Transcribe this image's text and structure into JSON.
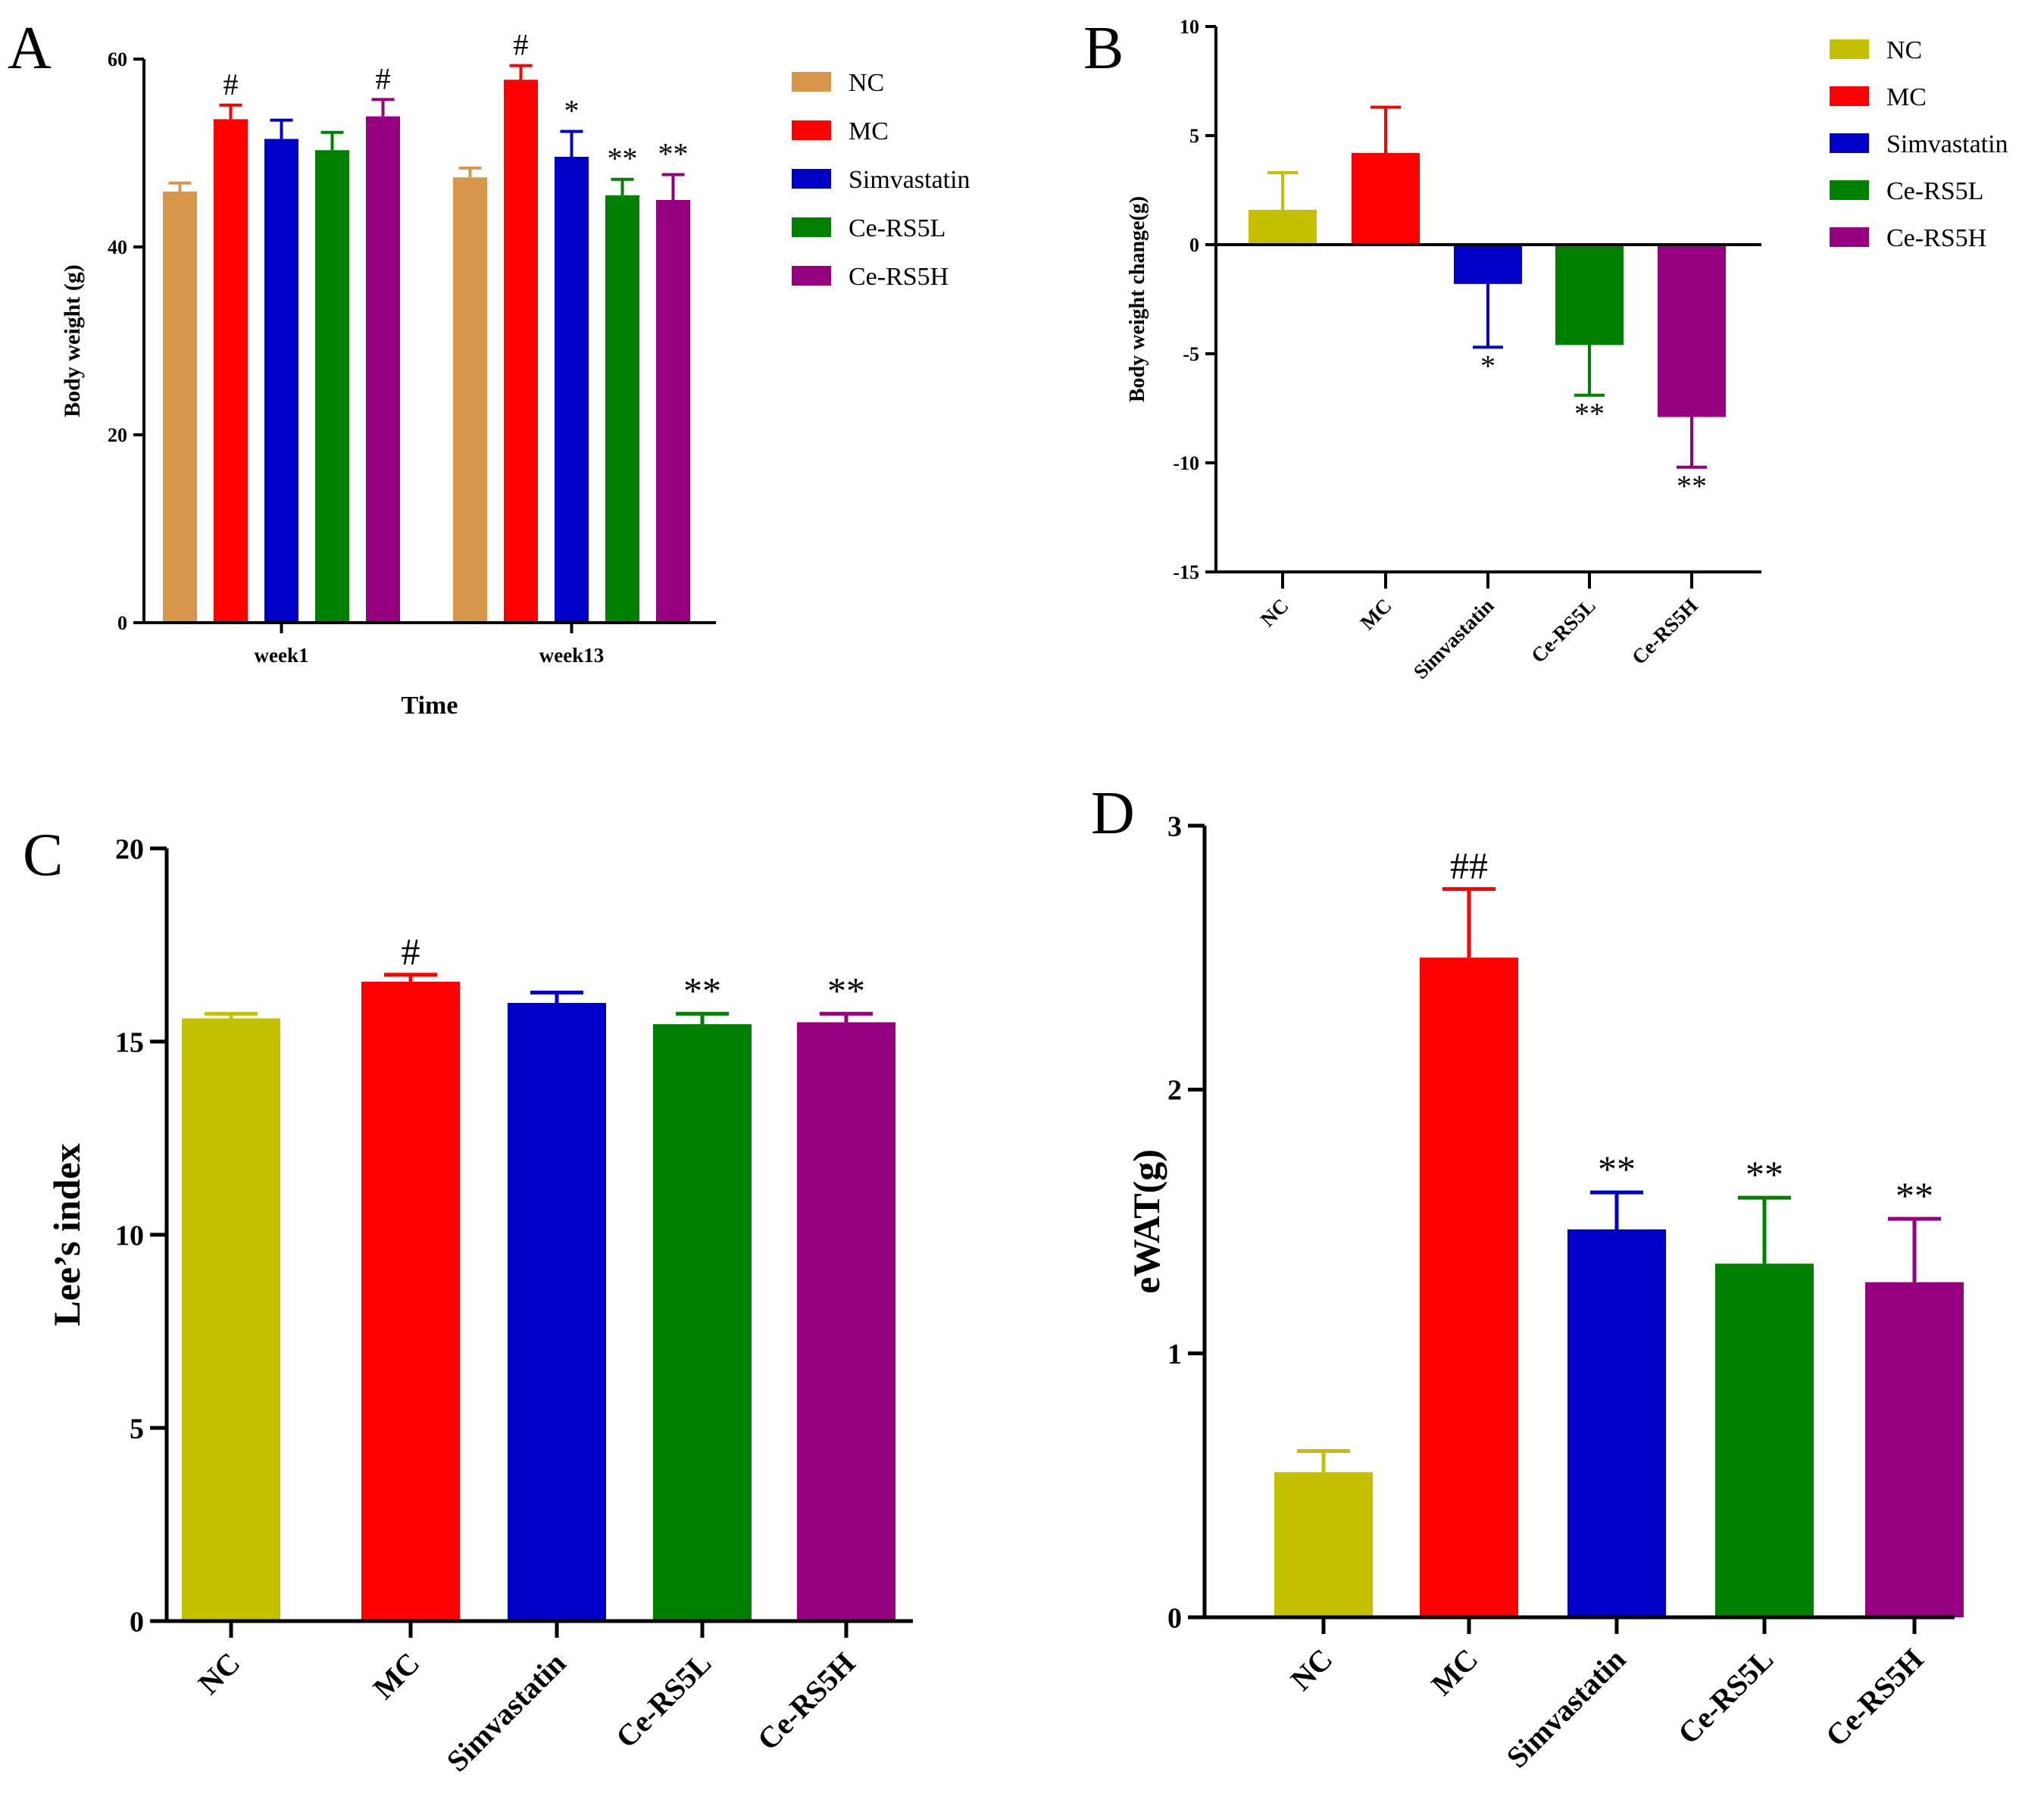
{
  "panels": {
    "A": {
      "letter": "A"
    },
    "B": {
      "letter": "B"
    },
    "C": {
      "letter": "C"
    },
    "D": {
      "letter": "D"
    }
  },
  "colors": {
    "NC_A": "#d7964a",
    "NC": "#c3c000",
    "MC": "#ff0000",
    "Simvastatin": "#0000c8",
    "Ce-RS5L": "#008000",
    "Ce-RS5H": "#960080"
  },
  "chart_data": [
    {
      "id": "A",
      "type": "bar",
      "title": "",
      "xlabel": "Time",
      "ylabel": "Body weight (g)",
      "ylim": [
        0,
        60
      ],
      "yticks": [
        0,
        20,
        40,
        60
      ],
      "categories": [
        "week1",
        "week13"
      ],
      "legend": {
        "placement": "right",
        "entries": [
          "NC",
          "MC",
          "Simvastatin",
          "Ce-RS5L",
          "Ce-RS5H"
        ]
      },
      "series": [
        {
          "name": "NC",
          "values": [
            45.9,
            47.4
          ],
          "errors": [
            0.9,
            1.0
          ],
          "marks": [
            "",
            ""
          ]
        },
        {
          "name": "MC",
          "values": [
            53.6,
            57.8
          ],
          "errors": [
            1.5,
            1.5
          ],
          "marks": [
            "#",
            "#"
          ]
        },
        {
          "name": "Simvastatin",
          "values": [
            51.5,
            49.6
          ],
          "errors": [
            2.0,
            2.7
          ],
          "marks": [
            "",
            "*"
          ]
        },
        {
          "name": "Ce-RS5L",
          "values": [
            50.3,
            45.5
          ],
          "errors": [
            1.9,
            1.7
          ],
          "marks": [
            "",
            "**"
          ]
        },
        {
          "name": "Ce-RS5H",
          "values": [
            53.9,
            45.0
          ],
          "errors": [
            1.8,
            2.7
          ],
          "marks": [
            "#",
            "**"
          ]
        }
      ]
    },
    {
      "id": "B",
      "type": "bar",
      "title": "",
      "xlabel": "",
      "ylabel": "Body weight change(g)",
      "ylim": [
        -15,
        10
      ],
      "yticks": [
        -15,
        -10,
        -5,
        0,
        5,
        10
      ],
      "categories": [
        "NC",
        "MC",
        "Simvastatin",
        "Ce-RS5L",
        "Ce-RS5H"
      ],
      "values": [
        1.6,
        4.2,
        -1.8,
        -4.6,
        -7.9
      ],
      "errors": [
        1.7,
        2.1,
        2.9,
        2.3,
        2.3
      ],
      "marks": [
        "",
        "",
        "*",
        "**",
        "**"
      ],
      "legend": {
        "placement": "top-right",
        "entries": [
          "NC",
          "MC",
          "Simvastatin",
          "Ce-RS5L",
          "Ce-RS5H"
        ]
      }
    },
    {
      "id": "C",
      "type": "bar",
      "title": "",
      "xlabel": "",
      "ylabel": "Lee’s index",
      "ylim": [
        0,
        20
      ],
      "yticks": [
        0,
        5,
        10,
        15,
        20
      ],
      "categories": [
        "NC",
        "MC",
        "Simvastatin",
        "Ce-RS5L",
        "Ce-RS5H"
      ],
      "values": [
        15.6,
        16.55,
        16.0,
        15.45,
        15.5
      ],
      "errors": [
        0.12,
        0.18,
        0.27,
        0.27,
        0.22
      ],
      "marks": [
        "",
        "#",
        "",
        "**",
        "**"
      ]
    },
    {
      "id": "D",
      "type": "bar",
      "title": "",
      "xlabel": "",
      "ylabel": "eWAT(g)",
      "ylim": [
        0,
        3
      ],
      "yticks": [
        0,
        1,
        2,
        3
      ],
      "categories": [
        "NC",
        "MC",
        "Simvastatin",
        "Ce-RS5L",
        "Ce-RS5H"
      ],
      "values": [
        0.55,
        2.5,
        1.47,
        1.34,
        1.27
      ],
      "errors": [
        0.08,
        0.26,
        0.14,
        0.25,
        0.24
      ],
      "marks": [
        "",
        "##",
        "**",
        "**",
        "**"
      ]
    }
  ]
}
